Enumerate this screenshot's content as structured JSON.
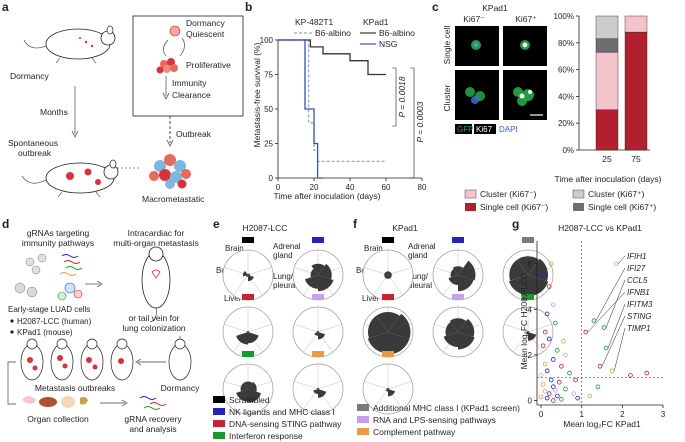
{
  "panels": {
    "a": {
      "letter": "a",
      "labels": {
        "dormancy": "Dormancy",
        "months": "Months",
        "spontaneous": "Spontaneous",
        "outbreak": "outbreak",
        "box_dormancy": "Dormancy",
        "quiescent": "Quiescent",
        "proliferative": "Proliferative",
        "immunity": "Immunity",
        "clearance": "Clearance",
        "box_outbreak": "Outbreak",
        "macrometastatic": "Macrometastatic"
      }
    },
    "b": {
      "letter": "b"
    },
    "c": {
      "letter": "c",
      "title": "KPad1",
      "col_ki67_neg": "Ki67⁻",
      "col_ki67_pos": "Ki67⁺",
      "row_single": "Single cell",
      "row_cluster": "Cluster",
      "stain_gfp": "GFP",
      "stain_ki67": "Ki67",
      "stain_dapi": "DAPI"
    },
    "d": {
      "letter": "d",
      "grnas": [
        "gRNAs targeting",
        "immunity pathways"
      ],
      "intracardiac": [
        "Intracardiac for",
        "multi-organ metastasis"
      ],
      "early_stage": "Early-stage LUAD cells",
      "line_human": "H2087-LCC (human)",
      "line_mouse": "KPad1 (mouse)",
      "tail_vein": [
        "or tail vein for",
        "lung colonization"
      ],
      "outbreaks": "Metastasis outbreaks",
      "dormancy": "Dormancy",
      "organ_collection": "Organ collection",
      "grna_recovery": [
        "gRNA recovery",
        "and analysis"
      ]
    },
    "e": {
      "letter": "e",
      "title": "H2087-LCC"
    },
    "f": {
      "letter": "f",
      "title": "KPad1"
    },
    "radar_labels": {
      "brain": "Brain",
      "adrenal": [
        "Adrenal",
        "gland"
      ],
      "bone": "Bone",
      "lung": [
        "Lung/",
        "pleural"
      ],
      "liver": "Liver"
    },
    "g": {
      "letter": "g",
      "title": "H2087-LCC vs KPad1"
    }
  },
  "legend": {
    "items": [
      {
        "label": "Scrambled",
        "color": "#000000"
      },
      {
        "label": "NK ligands and MHC class I",
        "color": "#2424b8"
      },
      {
        "label": "DNA-sensing STING pathway",
        "color": "#c8242f"
      },
      {
        "label": "Interferon response",
        "color": "#1a9a2e"
      },
      {
        "label": "Additional MHC class I (KPad1 screen)",
        "color": "#7a7a7a"
      },
      {
        "label": "RNA and LPS-sensing pathways",
        "color": "#c7a0ea"
      },
      {
        "label": "Complement pathway",
        "color": "#e89a4a"
      }
    ]
  },
  "chart_data": [
    {
      "panel": "b",
      "type": "line",
      "title": "",
      "xlabel": "Time after inoculation (days)",
      "ylabel": "Metastasis-free survival (%)",
      "xlim": [
        0,
        80
      ],
      "ylim": [
        0,
        100
      ],
      "xticks": [
        0,
        20,
        40,
        60,
        80
      ],
      "yticks": [
        0,
        25,
        50,
        75,
        100
      ],
      "legend_headers": [
        "KP-482T1",
        "KPad1"
      ],
      "series": [
        {
          "name": "B6-albino",
          "group": "KP-482T1",
          "color": "#a6a6a6",
          "dash": true,
          "x": [
            0,
            17,
            17,
            20,
            20,
            22,
            22,
            60
          ],
          "y": [
            100,
            100,
            40,
            40,
            20,
            20,
            12,
            12
          ]
        },
        {
          "name": "B6-albino",
          "group": "KPad1",
          "color": "#333333",
          "dash": false,
          "x": [
            0,
            18,
            18,
            25,
            25,
            40,
            40,
            50,
            50,
            60
          ],
          "y": [
            100,
            100,
            95,
            95,
            90,
            90,
            85,
            85,
            75,
            75
          ]
        },
        {
          "name": "NSG",
          "group": "KPad1",
          "color": "#3a4fc0",
          "dash": false,
          "x": [
            0,
            15,
            15,
            20,
            20,
            22,
            22,
            25
          ],
          "y": [
            100,
            100,
            50,
            50,
            25,
            25,
            0,
            0
          ]
        }
      ],
      "annotations": [
        "P = 0.0018",
        "P = 0.0003"
      ]
    },
    {
      "panel": "c",
      "type": "bar",
      "stacked": true,
      "xlabel": "Time after inoculation (days)",
      "ylabel": "",
      "ylim": [
        0,
        100
      ],
      "yticks": [
        0,
        20,
        40,
        60,
        80,
        100
      ],
      "ytick_suffix": "%",
      "categories": [
        "25",
        "75"
      ],
      "series": [
        {
          "name": "Single cell (Ki67⁻)",
          "color": "#b0202e",
          "values": [
            30,
            88
          ]
        },
        {
          "name": "Cluster (Ki67⁻)",
          "color": "#f5c3cc",
          "values": [
            43,
            12
          ]
        },
        {
          "name": "Single cell (Ki67⁺)",
          "color": "#6d6e71",
          "values": [
            10,
            0
          ]
        },
        {
          "name": "Cluster (Ki67⁺)",
          "color": "#cccccc",
          "values": [
            17,
            0
          ]
        }
      ]
    },
    {
      "panel": "e",
      "type": "radar",
      "axes": [
        "Brain",
        "Adrenal gland",
        "Lung/pleural",
        "Liver",
        "Bone"
      ],
      "groups": [
        {
          "color": "#000000",
          "values": [
            0.05,
            0.08,
            0.25,
            0.08,
            0.2
          ]
        },
        {
          "color": "#2424b8",
          "values": [
            0.45,
            0.55,
            0.65,
            0.55,
            0.3
          ]
        },
        {
          "color": "#c8242f",
          "values": [
            0.05,
            0.05,
            0.45,
            0.5,
            0.05
          ]
        },
        {
          "color": "#c7a0ea",
          "values": [
            0.05,
            0.05,
            0.3,
            0.15,
            0.05
          ]
        },
        {
          "color": "#1a9a2e",
          "values": [
            0.3,
            0.35,
            0.55,
            0.5,
            0.3
          ]
        },
        {
          "color": "#e89a4a",
          "values": [
            0.05,
            0.05,
            0.35,
            0.2,
            0.05
          ]
        }
      ]
    },
    {
      "panel": "f",
      "type": "radar",
      "axes": [
        "Brain",
        "Adrenal gland",
        "Lung/pleural",
        "Liver",
        "Bone"
      ],
      "groups": [
        {
          "color": "#000000",
          "values": [
            0.15,
            0.15,
            0.15,
            0.15,
            0.15
          ]
        },
        {
          "color": "#2424b8",
          "values": [
            0.35,
            0.7,
            0.65,
            0.4,
            0.3
          ]
        },
        {
          "color": "#7a7a7a",
          "values": [
            0.75,
            0.8,
            0.85,
            0.8,
            0.75
          ]
        },
        {
          "color": "#c8242f",
          "values": [
            0.8,
            0.9,
            0.9,
            0.85,
            0.8
          ]
        },
        {
          "color": "#c7a0ea",
          "values": [
            0.55,
            0.65,
            0.7,
            0.6,
            0.5
          ]
        },
        {
          "color": "#1a9a2e",
          "values": [
            0.05,
            0.05,
            0.35,
            0.1,
            0.05
          ]
        },
        {
          "color": "#e89a4a",
          "values": [
            0.05,
            0.05,
            0.3,
            0.1,
            0.05
          ]
        }
      ]
    },
    {
      "panel": "g",
      "type": "scatter",
      "xlabel": "Mean log₂FC KPad1",
      "ylabel": "Mean log₂FC H2087-LCC",
      "xlim": [
        -0.1,
        3
      ],
      "ylim": [
        -0.2,
        7
      ],
      "xticks": [
        0,
        1,
        2,
        3
      ],
      "yticks": [
        0,
        2,
        4,
        6
      ],
      "reference_x": 1,
      "reference_y": 1,
      "labeled_genes": [
        "IFIH1",
        "IFI27",
        "CCL5",
        "IFNB1",
        "IFITM3",
        "STING",
        "TIMP1"
      ],
      "points": [
        {
          "x": 1.85,
          "y": 6.0,
          "color": "#c7a0ea"
        },
        {
          "x": 1.3,
          "y": 3.5,
          "color": "#1a9a2e"
        },
        {
          "x": 1.55,
          "y": 3.2,
          "color": "#1a9a2e"
        },
        {
          "x": 1.1,
          "y": 3.0,
          "color": "#c8242f"
        },
        {
          "x": 1.6,
          "y": 2.3,
          "color": "#1a9a2e"
        },
        {
          "x": 1.45,
          "y": 1.5,
          "color": "#c8242f"
        },
        {
          "x": 1.75,
          "y": 1.3,
          "color": "#e89a4a"
        },
        {
          "x": 2.2,
          "y": 1.1,
          "color": "#c8242f"
        },
        {
          "x": 2.6,
          "y": 1.2,
          "color": "#c8242f"
        },
        {
          "x": 0.25,
          "y": 6.0,
          "color": "#e89a4a"
        },
        {
          "x": 0.2,
          "y": 5.0,
          "color": "#c8242f"
        },
        {
          "x": 0.3,
          "y": 4.2,
          "color": "#c7a0ea"
        },
        {
          "x": 0.15,
          "y": 3.8,
          "color": "#2424b8"
        },
        {
          "x": 0.35,
          "y": 3.4,
          "color": "#1a9a2e"
        },
        {
          "x": 0.1,
          "y": 3.0,
          "color": "#c8242f"
        },
        {
          "x": 0.2,
          "y": 2.7,
          "color": "#2424b8"
        },
        {
          "x": 0.05,
          "y": 2.4,
          "color": "#c8242f"
        },
        {
          "x": 0.4,
          "y": 2.2,
          "color": "#1a9a2e"
        },
        {
          "x": 0.6,
          "y": 2.0,
          "color": "#c7a0ea"
        },
        {
          "x": 0.3,
          "y": 1.8,
          "color": "#2424b8"
        },
        {
          "x": 0.1,
          "y": 1.6,
          "color": "#e89a4a"
        },
        {
          "x": 0.5,
          "y": 1.5,
          "color": "#c8242f"
        },
        {
          "x": 0.15,
          "y": 1.3,
          "color": "#2424b8"
        },
        {
          "x": 0.7,
          "y": 1.2,
          "color": "#1a9a2e"
        },
        {
          "x": 0.0,
          "y": 1.1,
          "color": "#c7a0ea"
        },
        {
          "x": 0.25,
          "y": 0.9,
          "color": "#2424b8"
        },
        {
          "x": 0.45,
          "y": 0.8,
          "color": "#c8242f"
        },
        {
          "x": 0.05,
          "y": 0.7,
          "color": "#e89a4a"
        },
        {
          "x": 0.3,
          "y": 0.6,
          "color": "#2424b8"
        },
        {
          "x": 0.6,
          "y": 0.5,
          "color": "#1a9a2e"
        },
        {
          "x": 0.1,
          "y": 0.4,
          "color": "#c7a0ea"
        },
        {
          "x": 0.2,
          "y": 0.3,
          "color": "#c8242f"
        },
        {
          "x": 0.4,
          "y": 0.2,
          "color": "#2424b8"
        },
        {
          "x": 0.0,
          "y": 0.15,
          "color": "#e89a4a"
        },
        {
          "x": 0.15,
          "y": 0.1,
          "color": "#2424b8"
        },
        {
          "x": 0.5,
          "y": 0.05,
          "color": "#1a9a2e"
        },
        {
          "x": 0.3,
          "y": 0.0,
          "color": "#c8242f"
        },
        {
          "x": 0.8,
          "y": 0.3,
          "color": "#c7a0ea"
        },
        {
          "x": 0.9,
          "y": 0.1,
          "color": "#2424b8"
        },
        {
          "x": 1.2,
          "y": 0.2,
          "color": "#e89a4a"
        },
        {
          "x": 1.4,
          "y": 0.6,
          "color": "#1a9a2e"
        },
        {
          "x": 0.85,
          "y": 0.9,
          "color": "#c8242f"
        },
        {
          "x": 0.55,
          "y": 2.6,
          "color": "#e89a4a"
        },
        {
          "x": 0.05,
          "y": 5.5,
          "color": "#2424b8"
        },
        {
          "x": 0.35,
          "y": 0.45,
          "color": "#c7a0ea"
        }
      ]
    }
  ]
}
